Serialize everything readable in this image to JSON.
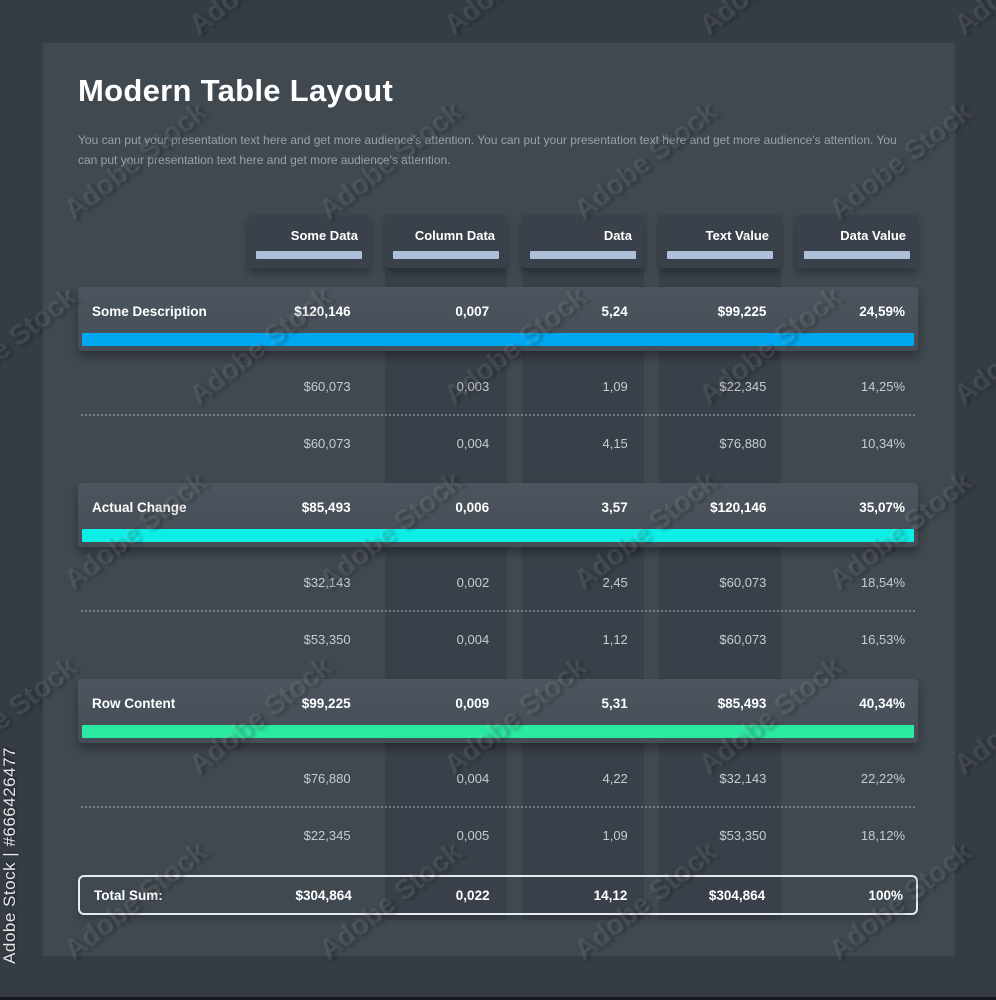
{
  "header": {
    "title": "Modern Table Layout",
    "subtitle": "You can put your presentation text here and get more audience's attention. You can put your presentation text here and get more audience's attention. You can put your presentation text here and get more audience's attention."
  },
  "chart_data": {
    "type": "table",
    "title": "Modern Table Layout",
    "columns": [
      "Some Data",
      "Column Data",
      "Data",
      "Text Value",
      "Data Value"
    ],
    "rows": [
      {
        "style": "highlight",
        "accent": "#00a8f2",
        "label": "Some Description",
        "values": [
          "$120,146",
          "0,007",
          "5,24",
          "$99,225",
          "24,59%"
        ]
      },
      {
        "style": "plain",
        "label": "",
        "values": [
          "$60,073",
          "0,003",
          "1,09",
          "$22,345",
          "14,25%"
        ]
      },
      {
        "style": "plain",
        "divider_above": true,
        "label": "",
        "values": [
          "$60,073",
          "0,004",
          "4,15",
          "$76,880",
          "10,34%"
        ]
      },
      {
        "style": "highlight",
        "accent": "#0ceee6",
        "label": "Actual Change",
        "values": [
          "$85,493",
          "0,006",
          "3,57",
          "$120,146",
          "35,07%"
        ]
      },
      {
        "style": "plain",
        "label": "",
        "values": [
          "$32,143",
          "0,002",
          "2,45",
          "$60,073",
          "18,54%"
        ]
      },
      {
        "style": "plain",
        "divider_above": true,
        "label": "",
        "values": [
          "$53,350",
          "0,004",
          "1,12",
          "$60,073",
          "16,53%"
        ]
      },
      {
        "style": "highlight",
        "accent": "#2ae9a1",
        "label": "Row Content",
        "values": [
          "$99,225",
          "0,009",
          "5,31",
          "$85,493",
          "40,34%"
        ]
      },
      {
        "style": "plain",
        "label": "",
        "values": [
          "$76,880",
          "0,004",
          "4,22",
          "$32,143",
          "22,22%"
        ]
      },
      {
        "style": "plain",
        "divider_above": true,
        "label": "",
        "values": [
          "$22,345",
          "0,005",
          "1,09",
          "$53,350",
          "18,12%"
        ]
      },
      {
        "style": "total",
        "label": "Total Sum:",
        "values": [
          "$304,864",
          "0,022",
          "14,12",
          "$304,864",
          "100%"
        ]
      }
    ]
  },
  "colors": {
    "accent_blue": "#00a8f2",
    "accent_cyan": "#0ceee6",
    "accent_green": "#2ae9a1",
    "header_underline": "#aebfda",
    "panel_bg": "#404850",
    "outer_bg": "#353c44",
    "stripe_bg": "#394049"
  },
  "watermark": {
    "tile_text": "Adobe Stock",
    "credit_text": "Adobe Stock | #666426477"
  }
}
